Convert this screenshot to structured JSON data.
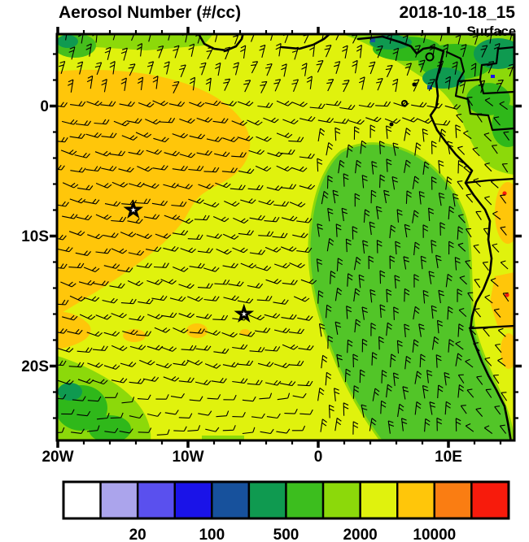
{
  "header": {
    "title": "Aerosol Number (#/cc)",
    "datetime": "2018-10-18_15",
    "level": "Surface"
  },
  "axes": {
    "lat_tick_labels": [
      {
        "label": "0",
        "lat": 0
      },
      {
        "label": "10S",
        "lat": -10
      },
      {
        "label": "20S",
        "lat": -20
      }
    ],
    "lon_tick_labels": [
      {
        "label": "20W",
        "lon": -20
      },
      {
        "label": "10W",
        "lon": -10
      },
      {
        "label": "0",
        "lon": 0
      },
      {
        "label": "10E",
        "lon": 10
      }
    ],
    "minor_tick_interval_deg": 2,
    "major_tick_interval_deg": 10
  },
  "colorbar": {
    "colors": [
      "#FFFFFF",
      "#ABA4EC",
      "#5A50EE",
      "#1A13E8",
      "#17519C",
      "#0F9A50",
      "#3CBE1E",
      "#8CD90A",
      "#E0F20D",
      "#FFC60A",
      "#FA7D12",
      "#F71B0C"
    ],
    "labels": [
      {
        "text": "20",
        "boundary": 2
      },
      {
        "text": "100",
        "boundary": 4
      },
      {
        "text": "500",
        "boundary": 6
      },
      {
        "text": "2000",
        "boundary": 8
      },
      {
        "text": "10000",
        "boundary": 10
      }
    ]
  },
  "chart_data": {
    "type": "heatmap",
    "title": "Aerosol Number (#/cc)",
    "datetime": "2018-10-18_15",
    "level": "Surface",
    "units": "#/cc",
    "extent": {
      "lon_min": -20,
      "lon_max": 15.1,
      "lat_min": -25.7,
      "lat_max": 5.5
    },
    "contour_boundaries": [
      10,
      20,
      50,
      100,
      200,
      500,
      1000,
      2000,
      5000,
      10000,
      20000
    ],
    "labeled_boundaries": [
      20,
      100,
      500,
      2000,
      10000
    ],
    "overlay": "surface wind barbs (southeasterly trades curving to southerly/southwesterly north of the equator)",
    "markers": [
      {
        "symbol": "star",
        "lon": -14.2,
        "lat": -8.0
      },
      {
        "symbol": "star",
        "lon": -5.7,
        "lat": -16.0
      }
    ],
    "regions": [
      {
        "value_range": "2000-5000",
        "color": "#E0F20D",
        "description": "yellow background over most of the basin"
      },
      {
        "value_range": "5000-10000",
        "color": "#FFC60A",
        "description": "orange plume in NW quadrant ~20W-6W, 2S-18S, tapering down the left edge"
      },
      {
        "value_range": "500-2000",
        "color": "#52C528",
        "description": "large green minimum blob center-right ~0E-14E, 3S-26S reaching the Angola/Namibia coast"
      },
      {
        "value_range": "100-500",
        "color": "#2FB81A",
        "description": "green band along Gulf of Guinea coast (Nigeria/Cameroon/Gabon) with dark-green clumps and few <200 specks"
      },
      {
        "value_range": "500-2000",
        "color": "#8CD90A",
        "description": "green patch in bottom-left corner ~20W-14W, 20S-26S"
      },
      {
        "value_range": "10000-20000+",
        "color": "#FA7D12",
        "description": "orange patches with tiny red specks along Angola coast strip at the right map edge"
      }
    ]
  }
}
